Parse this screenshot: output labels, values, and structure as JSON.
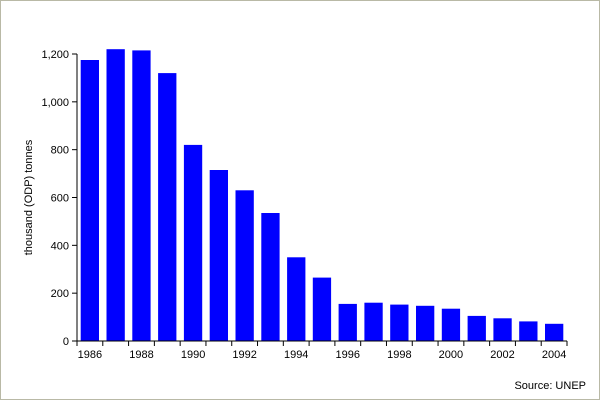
{
  "chart_data": {
    "type": "bar",
    "categories": [
      "1986",
      "1987",
      "1988",
      "1989",
      "1990",
      "1991",
      "1992",
      "1993",
      "1994",
      "1995",
      "1996",
      "1997",
      "1998",
      "1999",
      "2000",
      "2001",
      "2002",
      "2003",
      "2004"
    ],
    "values": [
      1175,
      1220,
      1215,
      1120,
      820,
      715,
      630,
      535,
      350,
      265,
      155,
      160,
      152,
      147,
      135,
      105,
      95,
      82,
      72
    ],
    "tick_labels": [
      "1986",
      "1988",
      "1990",
      "1992",
      "1994",
      "1996",
      "1998",
      "2000",
      "2002",
      "2004"
    ],
    "title": "",
    "xlabel": "",
    "ylabel": "thousand (ODP) tonnes",
    "ylim": [
      0,
      1200
    ],
    "yticks": [
      0,
      200,
      400,
      600,
      800,
      1000,
      1200
    ],
    "ytick_labels": [
      "0",
      "200",
      "400",
      "600",
      "800",
      "1,000",
      "1,200"
    ],
    "grid": false,
    "legend": "none",
    "bar_color": "#0000ff",
    "source": "Source: UNEP"
  }
}
